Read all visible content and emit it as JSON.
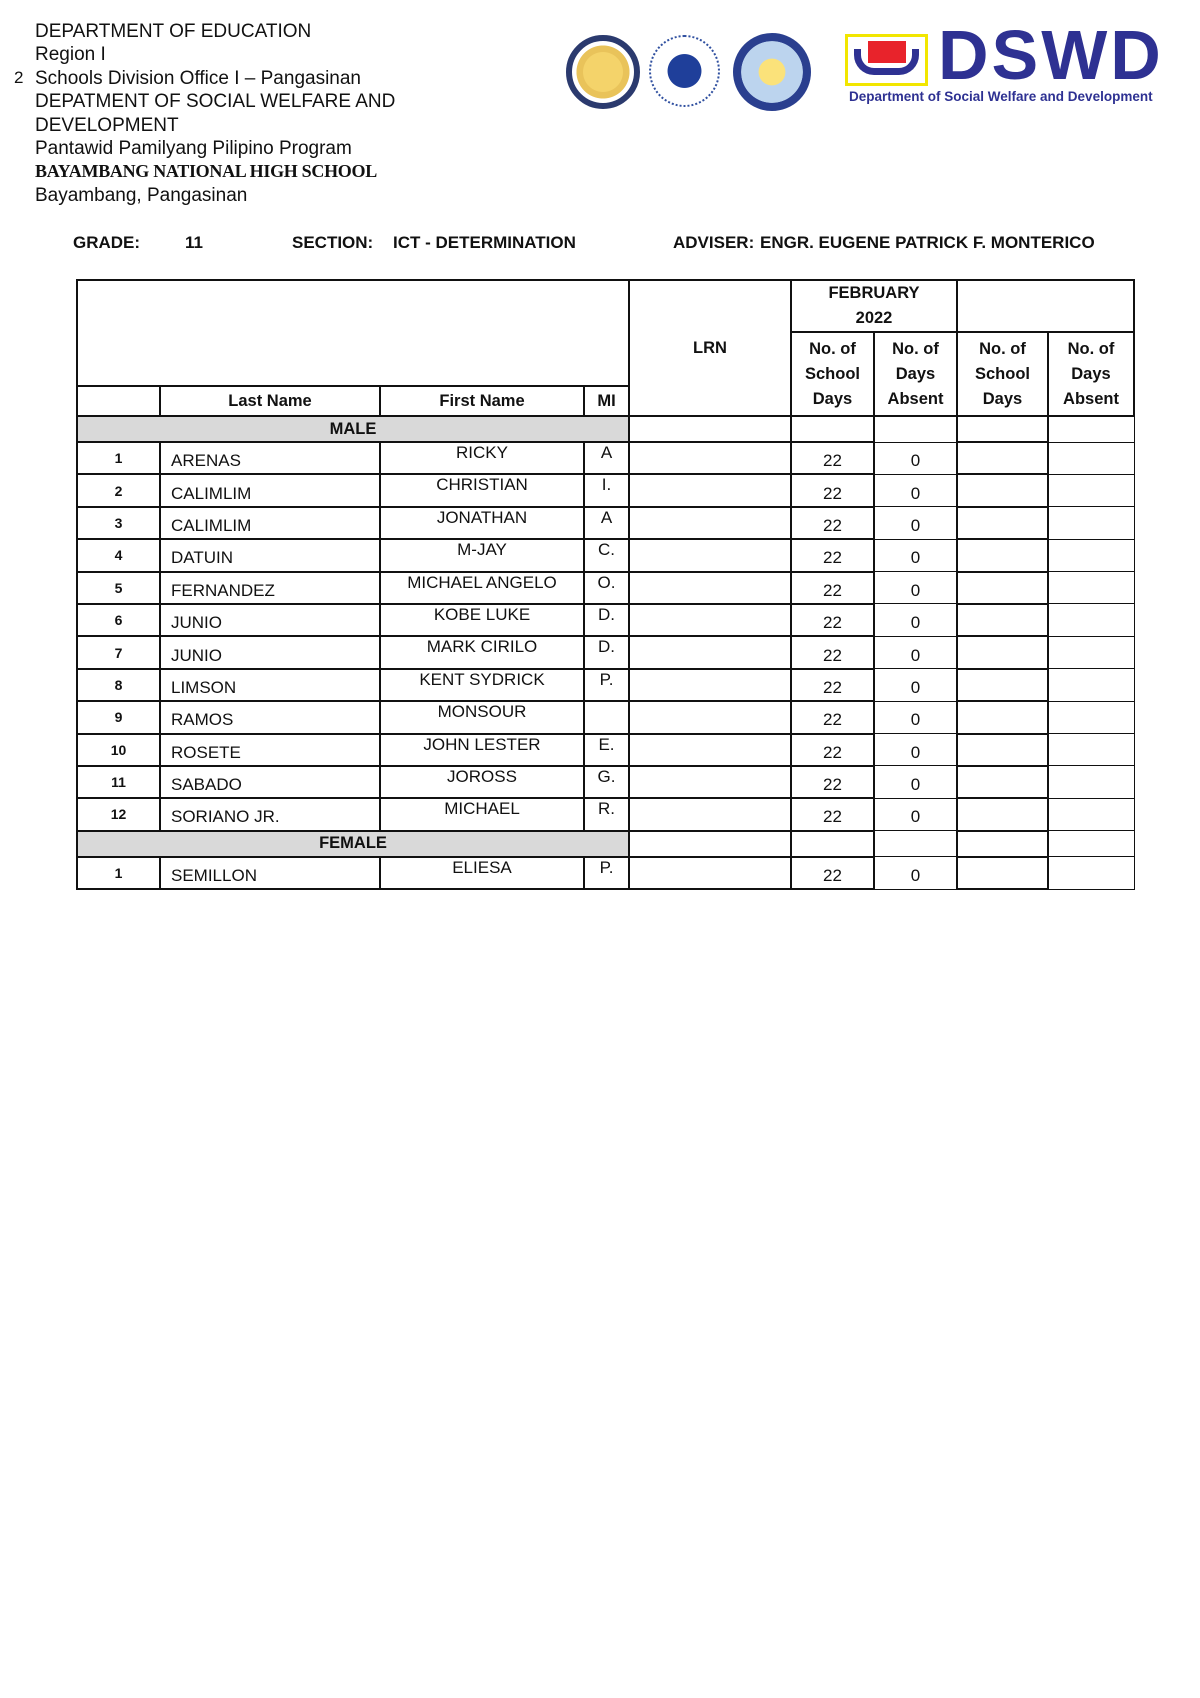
{
  "header": {
    "lines": [
      "DEPARTMENT  OF EDUCATION",
      "Region I",
      "Schools Division Office I – Pangasinan",
      "DEPATMENT OF SOCIAL WELFARE AND",
      "DEVELOPMENT",
      "Pantawid Pamilyang Pilipino Program",
      "BAYAMBANG NATIONAL HIGH SCHOOL",
      "Bayambang, Pangasinan"
    ],
    "page_number": "2"
  },
  "logos": {
    "dswd_text": "DSWD",
    "dswd_subtitle": "Department of Social Welfare and Development",
    "colors": {
      "dswd_blue": "#2e3192",
      "dswd_red": "#e8232b",
      "dswd_yellow": "#f2e600"
    }
  },
  "meta": {
    "grade_label": "GRADE:",
    "grade": "11",
    "section_label": "SECTION:",
    "section": "ICT - DETERMINATION",
    "adviser_label": "ADVISER:",
    "adviser": "ENGR. EUGENE PATRICK F. MONTERICO"
  },
  "table": {
    "headers": {
      "last": "Last Name",
      "first": "First Name",
      "mi": "MI",
      "lrn": "LRN",
      "month": "FEBRUARY",
      "year": "2022",
      "school_days": [
        "No. of",
        "School",
        "Days"
      ],
      "days_absent": [
        "No. of",
        "Days",
        "Absent"
      ]
    },
    "groups": [
      {
        "label": "MALE",
        "rows": [
          {
            "no": "1",
            "last": "ARENAS",
            "first": "RICKY",
            "mi": "A",
            "school_days": "22",
            "absent": "0"
          },
          {
            "no": "2",
            "last": "CALIMLIM",
            "first": "CHRISTIAN",
            "mi": "I.",
            "school_days": "22",
            "absent": "0"
          },
          {
            "no": "3",
            "last": "CALIMLIM",
            "first": "JONATHAN",
            "mi": "A",
            "school_days": "22",
            "absent": "0"
          },
          {
            "no": "4",
            "last": "DATUIN",
            "first": "M-JAY",
            "mi": "C.",
            "school_days": "22",
            "absent": "0"
          },
          {
            "no": "5",
            "last": "FERNANDEZ",
            "first": "MICHAEL ANGELO",
            "mi": "O.",
            "school_days": "22",
            "absent": "0"
          },
          {
            "no": "6",
            "last": "JUNIO",
            "first": "KOBE LUKE",
            "mi": "D.",
            "school_days": "22",
            "absent": "0"
          },
          {
            "no": "7",
            "last": "JUNIO",
            "first": "MARK CIRILO",
            "mi": "D.",
            "school_days": "22",
            "absent": "0"
          },
          {
            "no": "8",
            "last": "LIMSON",
            "first": "KENT SYDRICK",
            "mi": "P.",
            "school_days": "22",
            "absent": "0"
          },
          {
            "no": "9",
            "last": "RAMOS",
            "first": "MONSOUR",
            "mi": "",
            "school_days": "22",
            "absent": "0"
          },
          {
            "no": "10",
            "last": "ROSETE",
            "first": "JOHN LESTER",
            "mi": "E.",
            "school_days": "22",
            "absent": "0"
          },
          {
            "no": "11",
            "last": "SABADO",
            "first": "JOROSS",
            "mi": "G.",
            "school_days": "22",
            "absent": "0"
          },
          {
            "no": "12",
            "last": "SORIANO JR.",
            "first": "MICHAEL",
            "mi": "R.",
            "school_days": "22",
            "absent": "0"
          }
        ]
      },
      {
        "label": "FEMALE",
        "rows": [
          {
            "no": "1",
            "last": "SEMILLON",
            "first": "ELIESA",
            "mi": "P.",
            "school_days": "22",
            "absent": "0"
          }
        ]
      }
    ]
  }
}
